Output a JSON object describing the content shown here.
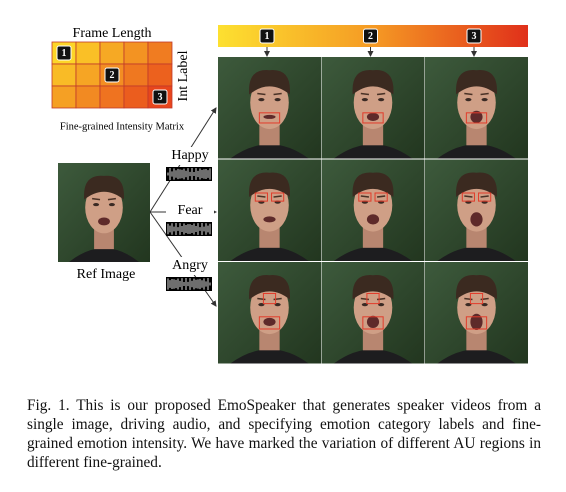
{
  "matrix": {
    "title": "Frame Length",
    "axis_label": "Int Label",
    "caption": "Fine-grained Intensity Matrix",
    "cells": [
      [
        "1",
        null,
        null,
        null,
        null
      ],
      [
        null,
        null,
        "2",
        null,
        null
      ],
      [
        null,
        null,
        null,
        null,
        "3"
      ]
    ]
  },
  "ref_image": {
    "label": "Ref Image"
  },
  "emotions": [
    "Happy",
    "Fear",
    "Angry"
  ],
  "intensity_bar": {
    "markers": [
      "1",
      "2",
      "3"
    ]
  },
  "figure_caption": "Fig. 1.  This is our proposed EmoSpeaker that generates speaker videos from a single image, driving audio, and specifying emotion category labels and fine-grained emotion intensity. We have marked the variation of different AU regions in different fine-grained."
}
